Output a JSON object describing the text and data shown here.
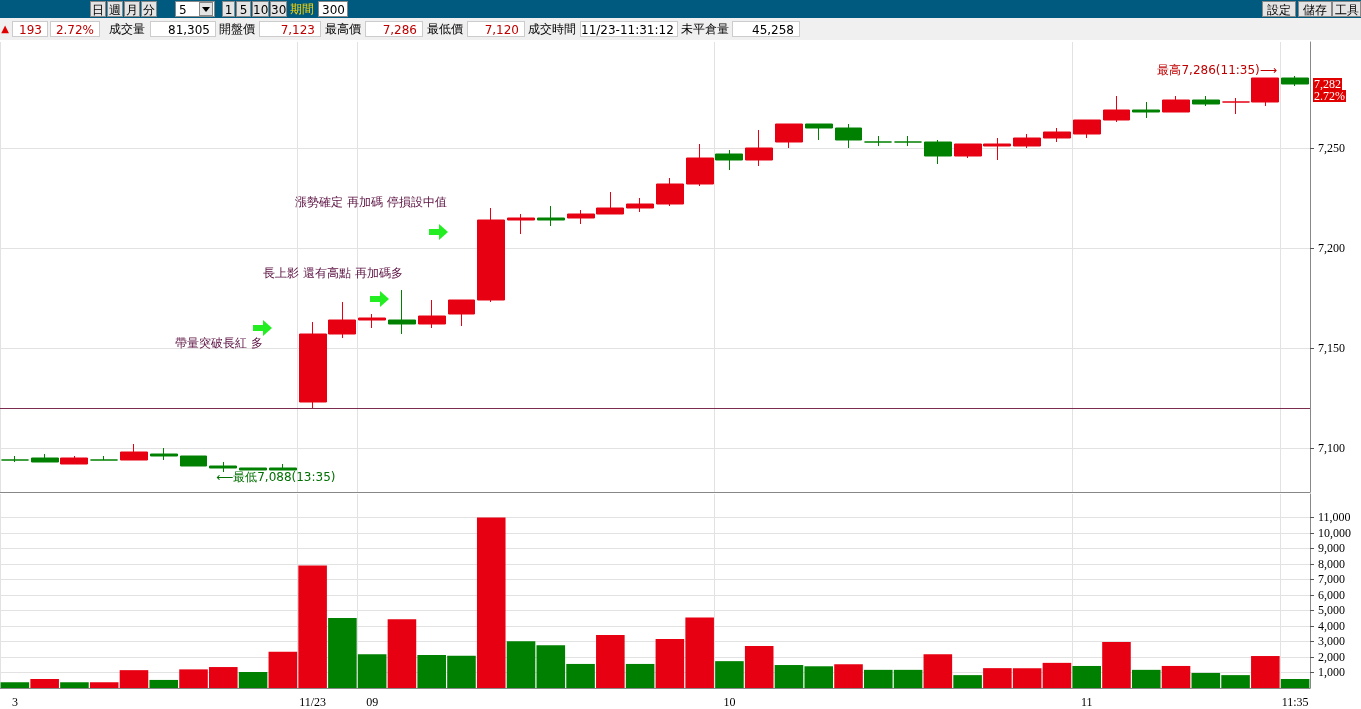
{
  "chart_data": [
    {
      "type": "other",
      "annotations": [
        "日",
        "週",
        "月",
        "分",
        "5",
        "1",
        "5",
        "10",
        "30",
        "期間",
        "300",
        "設定",
        "儲存",
        "工具",
        "▲",
        "193",
        "2.72%",
        "成交量",
        "81,305",
        "開盤價",
        "7,123",
        "最高價",
        "7,286",
        "最低價",
        "7,120",
        "成交時間",
        "11/23-11:31:12",
        "未平倉量",
        "45,258"
      ]
    },
    {
      "type": "candlestick",
      "categories": [
        null,
        null,
        null,
        null,
        null,
        null,
        null,
        null,
        null,
        null,
        null,
        null,
        null,
        null,
        null,
        null,
        null,
        null,
        null,
        null,
        null,
        null,
        null,
        null,
        null,
        null,
        null,
        null,
        null,
        null,
        null,
        null,
        null,
        null,
        null,
        null,
        null,
        null,
        null,
        null,
        null,
        null,
        null,
        null
      ],
      "ohlc": [
        [
          7094,
          7096,
          7093,
          7094
        ],
        [
          7095,
          7097,
          7093,
          7093
        ],
        [
          7092,
          7096,
          7092,
          7095
        ],
        [
          7094,
          7096,
          7094,
          7094
        ],
        [
          7094,
          7102,
          7094,
          7098
        ],
        [
          7097,
          7100,
          7094,
          7096
        ],
        [
          7096,
          7096,
          7091,
          7091
        ],
        [
          7091,
          7093,
          7088,
          7090
        ],
        [
          7090,
          7090,
          7089,
          7089
        ],
        [
          7090,
          7092,
          7089,
          7089
        ],
        [
          7123,
          7163,
          7120,
          7157
        ],
        [
          7157,
          7173,
          7155,
          7164
        ],
        [
          7164,
          7167,
          7160,
          7165
        ],
        [
          7164,
          7179,
          7157,
          7162
        ],
        [
          7162,
          7174,
          7160,
          7166
        ],
        [
          7167,
          7174,
          7161,
          7174
        ],
        [
          7174,
          7220,
          7173,
          7214
        ],
        [
          7214,
          7217,
          7207,
          7215
        ],
        [
          7215,
          7221,
          7211,
          7214
        ],
        [
          7215,
          7219,
          7212,
          7217
        ],
        [
          7217,
          7228,
          7217,
          7220
        ],
        [
          7220,
          7225,
          7218,
          7222
        ],
        [
          7222,
          7235,
          7221,
          7232
        ],
        [
          7232,
          7252,
          7231,
          7245
        ],
        [
          7247,
          7249,
          7239,
          7244
        ],
        [
          7244,
          7259,
          7241,
          7250
        ],
        [
          7253,
          7262,
          7250,
          7262
        ],
        [
          7262,
          7262,
          7254,
          7260
        ],
        [
          7260,
          7262,
          7250,
          7254
        ],
        [
          7253,
          7256,
          7251,
          7253
        ],
        [
          7253,
          7256,
          7251,
          7253
        ],
        [
          7253,
          7254,
          7242,
          7246
        ],
        [
          7246,
          7252,
          7245,
          7252
        ],
        [
          7251,
          7255,
          7244,
          7252
        ],
        [
          7251,
          7257,
          7250,
          7255
        ],
        [
          7255,
          7260,
          7253,
          7258
        ],
        [
          7257,
          7264,
          7255,
          7264
        ],
        [
          7264,
          7276,
          7263,
          7269
        ],
        [
          7269,
          7273,
          7265,
          7268
        ],
        [
          7268,
          7276,
          7268,
          7274
        ],
        [
          7274,
          7276,
          7271,
          7272
        ],
        [
          7273,
          7275,
          7267,
          7273
        ],
        [
          7273,
          7285,
          7271,
          7285
        ],
        [
          7285,
          7286,
          7281,
          7282
        ]
      ],
      "colors": [
        "#008000",
        "#008000",
        "#e60012",
        "#008000",
        "#e60012",
        "#008000",
        "#008000",
        "#008000",
        "#008000",
        "#008000",
        "#e60012",
        "#e60012",
        "#e60012",
        "#008000",
        "#e60012",
        "#e60012",
        "#e60012",
        "#e60012",
        "#008000",
        "#e60012",
        "#e60012",
        "#e60012",
        "#e60012",
        "#e60012",
        "#008000",
        "#e60012",
        "#e60012",
        "#008000",
        "#008000",
        "#008000",
        "#008000",
        "#008000",
        "#e60012",
        "#e60012",
        "#e60012",
        "#e60012",
        "#e60012",
        "#e60012",
        "#008000",
        "#e60012",
        "#008000",
        "#e60012",
        "#e60012",
        "#008000"
      ],
      "ylim": [
        7078,
        7303
      ],
      "yticks": [
        {
          "value": 7100,
          "label": "7,100"
        },
        {
          "value": 7150,
          "label": "7,150"
        },
        {
          "value": 7200,
          "label": "7,200"
        },
        {
          "value": 7250,
          "label": "7,250"
        }
      ],
      "grid": true,
      "tick_labels": "y",
      "ref_lines": [
        {
          "axis": "y",
          "value": 7120,
          "color": "#7b2d4f"
        }
      ],
      "annotations": [
        "最高7,286(11:35)⟶",
        "⟵最低7,088(13:35)",
        "帶量突破長紅  多",
        "長上影 還有高點  再加碼多",
        "漲勢確定  再加碼  停損設中值",
        {
          "text": "7,282",
          "y": 7282
        },
        "2.72%"
      ]
    },
    {
      "type": "bar",
      "categories": [
        "3",
        null,
        null,
        null,
        null,
        null,
        null,
        null,
        null,
        null,
        "11/23",
        null,
        "09",
        null,
        null,
        null,
        null,
        null,
        null,
        null,
        null,
        null,
        null,
        null,
        "10",
        null,
        null,
        null,
        null,
        null,
        null,
        null,
        null,
        null,
        null,
        null,
        "11",
        null,
        null,
        null,
        null,
        null,
        null,
        "11:35"
      ],
      "values": [
        370,
        580,
        370,
        370,
        1150,
        520,
        1200,
        1350,
        1030,
        2330,
        7900,
        4510,
        2180,
        4430,
        2130,
        2070,
        10990,
        3020,
        2760,
        1550,
        3420,
        1550,
        3160,
        4550,
        1730,
        2710,
        1480,
        1400,
        1530,
        1170,
        1170,
        2180,
        830,
        1280,
        1280,
        1620,
        1420,
        2960,
        1170,
        1420,
        970,
        830,
        2060,
        580
      ],
      "colors": [
        "#008000",
        "#e60012",
        "#008000",
        "#e60012",
        "#e60012",
        "#008000",
        "#e60012",
        "#e60012",
        "#008000",
        "#e60012",
        "#e60012",
        "#008000",
        "#008000",
        "#e60012",
        "#008000",
        "#008000",
        "#e60012",
        "#008000",
        "#008000",
        "#008000",
        "#e60012",
        "#008000",
        "#e60012",
        "#e60012",
        "#008000",
        "#e60012",
        "#008000",
        "#008000",
        "#e60012",
        "#008000",
        "#008000",
        "#e60012",
        "#008000",
        "#e60012",
        "#e60012",
        "#e60012",
        "#008000",
        "#e60012",
        "#008000",
        "#e60012",
        "#008000",
        "#008000",
        "#e60012",
        "#008000"
      ],
      "ylim": [
        0,
        12500
      ],
      "yticks": [
        {
          "value": 1000,
          "label": "1,000"
        },
        {
          "value": 2000,
          "label": "2,000"
        },
        {
          "value": 3000,
          "label": "3,000"
        },
        {
          "value": 4000,
          "label": "4,000"
        },
        {
          "value": 5000,
          "label": "5,000"
        },
        {
          "value": 6000,
          "label": "6,000"
        },
        {
          "value": 7000,
          "label": "7,000"
        },
        {
          "value": 8000,
          "label": "8,000"
        },
        {
          "value": 9000,
          "label": "9,000"
        },
        {
          "value": 10000,
          "label": "10,000"
        },
        {
          "value": 11000,
          "label": "11,000"
        }
      ],
      "grid": true
    }
  ]
}
